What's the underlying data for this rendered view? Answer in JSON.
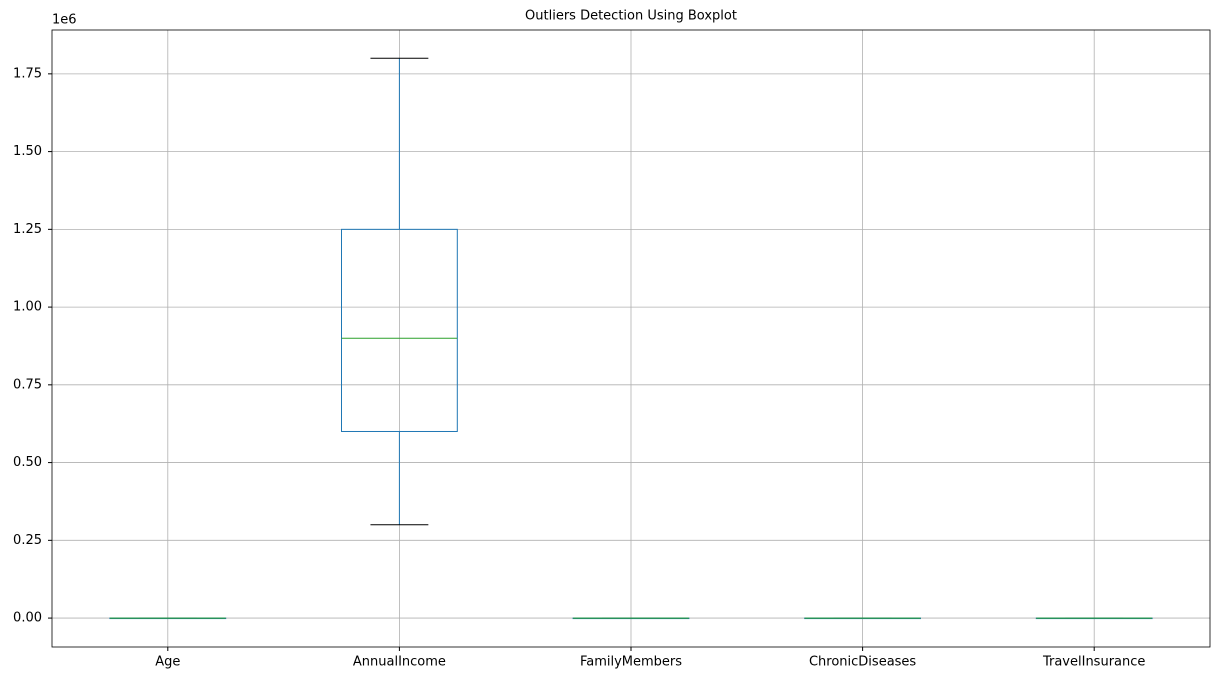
{
  "chart_data": {
    "type": "box",
    "title": "Outliers Detection Using Boxplot",
    "axis_offset_label": "1e6",
    "categories": [
      "Age",
      "AnnualIncome",
      "FamilyMembers",
      "ChronicDiseases",
      "TravelInsurance"
    ],
    "boxes": [
      {
        "whislo": 25,
        "q1": 28,
        "med": 29,
        "q3": 32,
        "whishi": 35
      },
      {
        "whislo": 300000,
        "q1": 600000,
        "med": 900000,
        "q3": 1250000,
        "whishi": 1800000
      },
      {
        "whislo": 2,
        "q1": 4,
        "med": 5,
        "q3": 6,
        "whishi": 9
      },
      {
        "whislo": 0,
        "q1": 0,
        "med": 0,
        "q3": 1,
        "whishi": 1
      },
      {
        "whislo": 0,
        "q1": 0,
        "med": 0,
        "q3": 1,
        "whishi": 1
      }
    ],
    "box_color": "#1f77b4",
    "median_color": "#2ca02c",
    "cap_color": "#000000",
    "ylim": [
      -93000,
      1891000
    ],
    "yticks": [
      {
        "value": 0,
        "label": "0.00"
      },
      {
        "value": 250000,
        "label": "0.25"
      },
      {
        "value": 500000,
        "label": "0.50"
      },
      {
        "value": 750000,
        "label": "0.75"
      },
      {
        "value": 1000000,
        "label": "1.00"
      },
      {
        "value": 1250000,
        "label": "1.25"
      },
      {
        "value": 1500000,
        "label": "1.50"
      },
      {
        "value": 1750000,
        "label": "1.75"
      }
    ],
    "grid": true
  }
}
